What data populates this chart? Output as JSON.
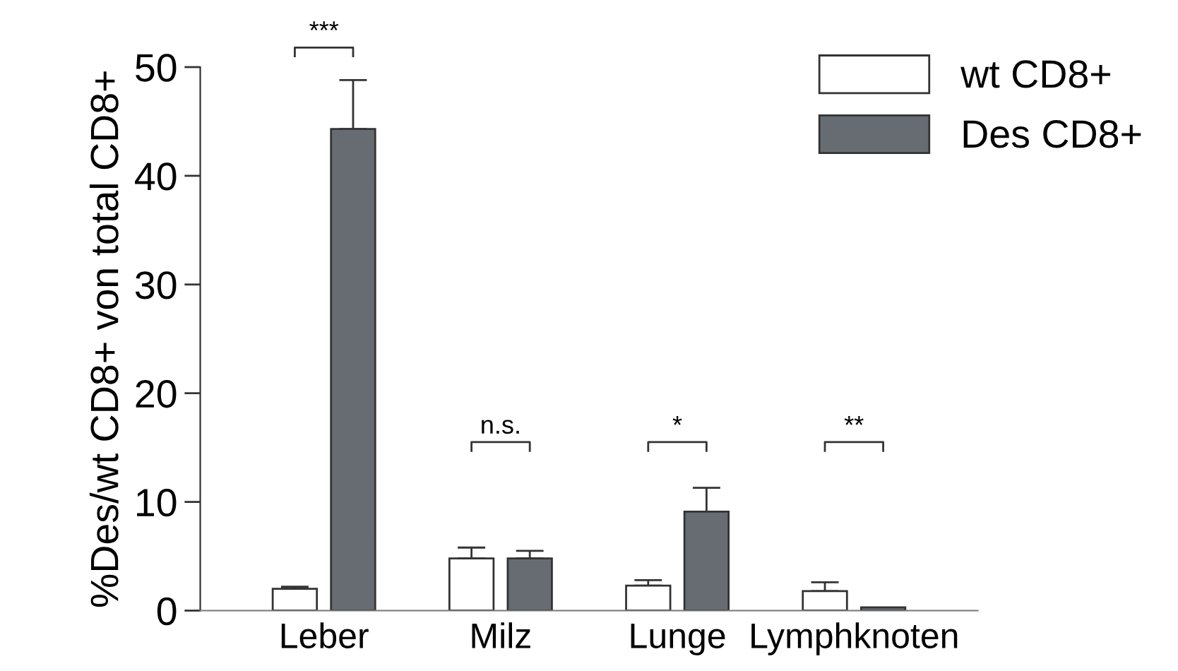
{
  "chart_data": {
    "type": "bar",
    "ylabel": "%Des/wt CD8+ von total CD8+",
    "categories": [
      "Leber",
      "Milz",
      "Lunge",
      "Lymphknoten"
    ],
    "series": [
      {
        "name": "wt CD8+",
        "color": "#ffffff",
        "values": [
          2.0,
          4.8,
          2.3,
          1.8
        ],
        "errors": [
          [
            2.0,
            2.2
          ],
          [
            4.8,
            5.8
          ],
          [
            2.3,
            2.8
          ],
          [
            1.8,
            2.6
          ]
        ]
      },
      {
        "name": "Des CD8+",
        "color": "#666c72",
        "values": [
          44.3,
          4.8,
          9.1,
          0.3
        ],
        "errors": [
          [
            44.3,
            48.8
          ],
          [
            4.8,
            5.5
          ],
          [
            9.1,
            11.3
          ],
          null
        ]
      }
    ],
    "ylim": [
      0,
      50
    ],
    "yticks": [
      0,
      10,
      20,
      30,
      40,
      50
    ],
    "grid": false,
    "legend": "top right",
    "annotations": [
      "***",
      "n.s.",
      "*",
      "**"
    ]
  }
}
